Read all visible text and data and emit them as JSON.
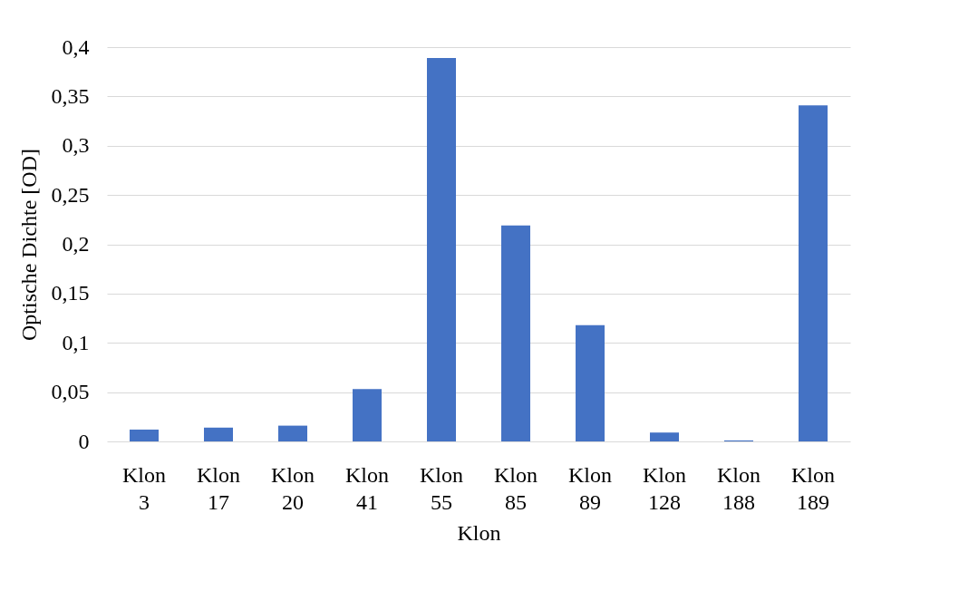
{
  "chart_data": {
    "type": "bar",
    "xlabel": "Klon",
    "ylabel": "Optische  Dichte [OD]",
    "categories": [
      "Klon 3",
      "Klon 17",
      "Klon 20",
      "Klon 41",
      "Klon 55",
      "Klon 85",
      "Klon 89",
      "Klon 128",
      "Klon 188",
      "Klon 189"
    ],
    "values": [
      0.012,
      0.014,
      0.016,
      0.053,
      0.389,
      0.219,
      0.118,
      0.009,
      0.001,
      0.341
    ],
    "color": "#4472c4",
    "ylim": [
      0,
      0.4
    ],
    "yticks": [
      0,
      {
        "value": 0.05,
        "label": "0,05"
      },
      {
        "value": 0.1,
        "label": "0,1"
      },
      {
        "value": 0.15,
        "label": "0,15"
      },
      {
        "value": 0.2,
        "label": "0,2"
      },
      {
        "value": 0.25,
        "label": "0,25"
      },
      {
        "value": 0.3,
        "label": "0,3"
      },
      {
        "value": 0.35,
        "label": "0,35"
      },
      {
        "value": 0.4,
        "label": "0,4"
      }
    ],
    "grid": "y"
  }
}
